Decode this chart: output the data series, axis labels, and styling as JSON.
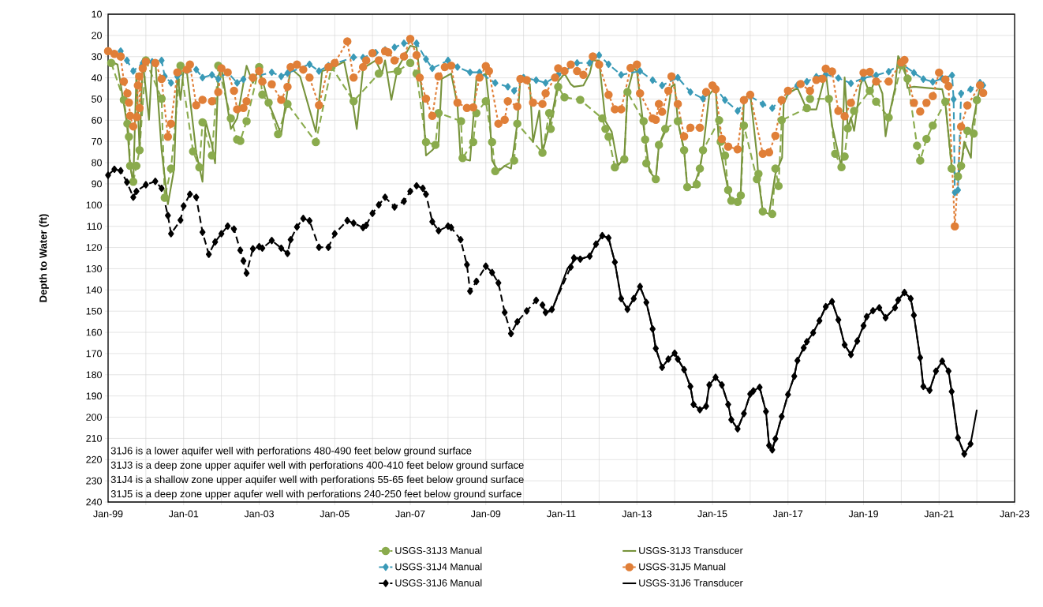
{
  "chart_data": {
    "type": "line",
    "ylabel": "Depth to Water (ft)",
    "xlim": [
      "1999-01",
      "2023-01"
    ],
    "ylim": [
      240,
      10
    ],
    "xticks": [
      {
        "value": "1999-01",
        "label": "Jan-99"
      },
      {
        "value": "2000-01",
        "label": null
      },
      {
        "value": "2001-01",
        "label": "Jan-01"
      },
      {
        "value": "2002-01",
        "label": null
      },
      {
        "value": "2003-01",
        "label": "Jan-03"
      },
      {
        "value": "2004-01",
        "label": null
      },
      {
        "value": "2005-01",
        "label": "Jan-05"
      },
      {
        "value": "2006-01",
        "label": null
      },
      {
        "value": "2007-01",
        "label": "Jan-07"
      },
      {
        "value": "2008-01",
        "label": null
      },
      {
        "value": "2009-01",
        "label": "Jan-09"
      },
      {
        "value": "2010-01",
        "label": null
      },
      {
        "value": "2011-01",
        "label": "Jan-11"
      },
      {
        "value": "2012-01",
        "label": null
      },
      {
        "value": "2013-01",
        "label": "Jan-13"
      },
      {
        "value": "2014-01",
        "label": null
      },
      {
        "value": "2015-01",
        "label": "Jan-15"
      },
      {
        "value": "2016-01",
        "label": null
      },
      {
        "value": "2017-01",
        "label": "Jan-17"
      },
      {
        "value": "2018-01",
        "label": null
      },
      {
        "value": "2019-01",
        "label": "Jan-19"
      },
      {
        "value": "2020-01",
        "label": null
      },
      {
        "value": "2021-01",
        "label": "Jan-21"
      },
      {
        "value": "2022-01",
        "label": null
      },
      {
        "value": "2023-01",
        "label": "Jan-23"
      }
    ],
    "yticks": [
      10,
      20,
      30,
      40,
      50,
      60,
      70,
      80,
      90,
      100,
      110,
      120,
      130,
      140,
      150,
      160,
      170,
      180,
      190,
      200,
      210,
      220,
      230,
      240
    ],
    "grid": true,
    "legend": "bottom",
    "annotations": [
      "31J6 is a lower aquifer well with perforations 480-490 feet below ground surface",
      "31J3 is a deep zone upper aquifer well with perforations 400-410 feet below ground surface",
      "31J4 is a shallow zone upper aquifer well with perforations 55-65 feet below ground surface",
      "31J5 is a deep zone upper aqufer well with perforations 240-250 feet below ground surface"
    ],
    "series": [
      {
        "name": "USGS-31J3 Manual",
        "color": "#8aab4d",
        "marker": "circle",
        "line_style": "dashed",
        "x": [
          "1999-02",
          "1999-06",
          "1999-07-05",
          "1999-07-20",
          "1999-08",
          "1999-09",
          "1999-10",
          "1999-11",
          "2000-01",
          "2000-06",
          "2000-07",
          "2000-09",
          "2000-12",
          "2001-04",
          "2001-06",
          "2001-07",
          "2001-10",
          "2001-12",
          "2002-04",
          "2002-06",
          "2002-07",
          "2002-09",
          "2003-01",
          "2003-02",
          "2003-04",
          "2003-07",
          "2003-10",
          "2004-07",
          "2004-12",
          "2005-07",
          "2006-03",
          "2006-09",
          "2007-01",
          "2007-03",
          "2007-06",
          "2007-09",
          "2007-10",
          "2008-05-05",
          "2008-05-20",
          "2008-09",
          "2008-10",
          "2009-01",
          "2009-03",
          "2009-04",
          "2009-10",
          "2009-11",
          "2010-07",
          "2010-09-05",
          "2010-09-20",
          "2010-12",
          "2011-02",
          "2011-07",
          "2012-02",
          "2012-03",
          "2012-04",
          "2012-06",
          "2012-09",
          "2012-10",
          "2013-03-05",
          "2013-03-20",
          "2013-04",
          "2013-07",
          "2013-08",
          "2013-10",
          "2014-02",
          "2014-04",
          "2014-05",
          "2014-08",
          "2014-09",
          "2014-10",
          "2015-03-05",
          "2015-03-20",
          "2015-05",
          "2015-06",
          "2015-07",
          "2015-09",
          "2015-10",
          "2015-11",
          "2016-03-05",
          "2016-03-20",
          "2016-05",
          "2016-08",
          "2016-09",
          "2016-10",
          "2016-11",
          "2017-07",
          "2017-08",
          "2018-02",
          "2018-04",
          "2018-06",
          "2018-07",
          "2018-08",
          "2018-10",
          "2019-03",
          "2019-05",
          "2019-09",
          "2020-01",
          "2020-03",
          "2020-06",
          "2020-07",
          "2020-09",
          "2020-11",
          "2021-03",
          "2021-05",
          "2021-07",
          "2021-08",
          "2021-10",
          "2021-12",
          "2022-01"
        ],
        "values": [
          33,
          50.4,
          61.6,
          67.8,
          81.5,
          89,
          81.5,
          74.1,
          31.8,
          49.8,
          96.5,
          82.8,
          34.3,
          74.7,
          82.2,
          61,
          76.6,
          34.3,
          59.1,
          69.1,
          69.7,
          60.4,
          34.9,
          47.9,
          51.7,
          66.6,
          52.3,
          70.3,
          34.9,
          51,
          38,
          36.8,
          33,
          38,
          70.3,
          71.6,
          56.6,
          60.4,
          77.8,
          70.3,
          56.6,
          51,
          70.3,
          84,
          79,
          61.6,
          75.3,
          56.6,
          64.1,
          44.2,
          49.2,
          50.4,
          59.1,
          64.1,
          67.8,
          82.2,
          78.4,
          46.7,
          60.4,
          69.1,
          80.3,
          87.8,
          71.6,
          64.1,
          60.4,
          74.1,
          91.5,
          90.2,
          82.8,
          74.1,
          60,
          70.1,
          76.6,
          92.9,
          97.9,
          98.5,
          95.4,
          62.5,
          87.8,
          85.3,
          103,
          104.2,
          82.8,
          91,
          60,
          54.3,
          49.9,
          49.9,
          75.8,
          82.1,
          77.1,
          63.8,
          55.6,
          46.1,
          51.2,
          58.7,
          34.1,
          40.4,
          72,
          79,
          68.8,
          62.5,
          51.2,
          82.8,
          86.5,
          81.5,
          65,
          66.3,
          50.5
        ]
      },
      {
        "name": "USGS-31J3 Transducer",
        "color": "#77933c",
        "marker": "none",
        "line_style": "solid",
        "x": [
          "1999-01",
          "1999-04",
          "1999-07",
          "1999-08",
          "1999-09",
          "1999-10",
          "1999-11",
          "1999-12",
          "2000-02",
          "2000-03",
          "2000-04",
          "2000-06",
          "2000-08",
          "2000-10",
          "2000-11",
          "2000-12",
          "2001-01",
          "2001-02",
          "2001-05",
          "2001-07",
          "2001-08",
          "2001-10",
          "2001-11",
          "2001-12",
          "2002-01",
          "2002-04",
          "2002-06",
          "2002-09",
          "2002-11",
          "2003-01",
          "2003-04",
          "2003-08",
          "2003-11",
          "2004-02",
          "2004-07",
          "2004-09",
          "2004-12",
          "2005-04",
          "2005-07",
          "2005-08",
          "2005-10",
          "2006-02",
          "2006-04",
          "2006-05",
          "2006-07",
          "2006-09",
          "2007-01",
          "2007-03",
          "2007-05",
          "2007-06",
          "2007-08",
          "2007-10",
          "2007-11",
          "2008-02",
          "2008-04",
          "2008-05",
          "2008-08",
          "2008-10",
          "2009-01",
          "2009-02",
          "2009-03",
          "2009-05",
          "2009-07",
          "2009-09",
          "2009-11",
          "2009-12",
          "2010-03",
          "2010-04",
          "2010-06",
          "2010-07",
          "2010-10",
          "2010-12",
          "2011-02",
          "2011-04",
          "2011-05",
          "2011-08",
          "2011-10",
          "2011-11",
          "2012-01",
          "2012-03",
          "2012-05",
          "2012-07",
          "2012-09",
          "2012-10",
          "2012-12",
          "2013-01",
          "2013-03",
          "2013-05",
          "2013-07",
          "2013-08",
          "2013-10",
          "2013-12",
          "2014-01",
          "2014-02",
          "2014-04",
          "2014-05",
          "2014-07",
          "2014-09",
          "2014-10",
          "2014-12",
          "2015-02",
          "2015-03",
          "2015-06",
          "2015-07",
          "2015-09",
          "2015-10",
          "2015-11",
          "2016-01",
          "2016-03-05",
          "2016-03-20",
          "2016-05",
          "2016-07",
          "2016-09",
          "2016-11-05",
          "2016-11-20",
          "2017-01",
          "2017-04",
          "2017-07",
          "2017-10",
          "2017-12",
          "2018-01",
          "2018-03",
          "2018-05",
          "2018-06",
          "2018-07",
          "2018-08",
          "2018-09",
          "2018-10",
          "2018-12",
          "2019-01",
          "2019-03",
          "2019-05",
          "2019-07",
          "2019-08",
          "2019-09",
          "2019-11",
          "2019-12",
          "2020-02",
          "2020-03",
          "2020-05",
          "2021-02",
          "2021-03",
          "2021-05",
          "2021-06",
          "2021-07",
          "2021-08",
          "2021-09",
          "2021-11-05",
          "2021-11-20",
          "2022-01",
          "2022-02"
        ],
        "values": [
          31.8,
          33.7,
          61.6,
          81.5,
          89.6,
          38,
          74.1,
          31.8,
          59.8,
          31.8,
          31.8,
          74.1,
          99.6,
          82.8,
          37.4,
          50.4,
          36.1,
          36.8,
          75.3,
          89,
          60.4,
          71.6,
          80.3,
          39.3,
          34.9,
          64.1,
          59.1,
          34.3,
          42.4,
          35.5,
          51.7,
          66.6,
          35.5,
          39.3,
          65.4,
          36.8,
          35.5,
          32.4,
          54.2,
          64.1,
          35.5,
          31.8,
          38,
          31.8,
          50.4,
          35.5,
          24.9,
          25.6,
          50.4,
          76.6,
          74.1,
          70.3,
          40.5,
          38,
          52.9,
          77.8,
          79,
          40.5,
          38,
          51.7,
          79,
          84,
          81.5,
          82.8,
          61.6,
          39.9,
          43,
          70.3,
          55.4,
          75.3,
          57.9,
          41.7,
          38,
          43,
          44.2,
          43.6,
          38,
          31.8,
          31.8,
          60.4,
          65.4,
          81.5,
          77.8,
          46.7,
          35.5,
          36.8,
          61.6,
          84,
          87.8,
          71.6,
          65.4,
          44.2,
          43,
          60.4,
          74.1,
          91.5,
          91.5,
          82.8,
          74.1,
          47.9,
          44.2,
          70.1,
          92.9,
          97.9,
          97.9,
          94.1,
          49.9,
          47.4,
          76.4,
          87.8,
          103,
          104.2,
          85.3,
          77.7,
          52.4,
          47.4,
          44.8,
          54.9,
          54.9,
          43.5,
          37.2,
          62.5,
          75.8,
          82.1,
          39.8,
          63.8,
          58.7,
          65,
          43.5,
          39.8,
          47.4,
          39.8,
          47.4,
          67.6,
          58.7,
          44.8,
          29.7,
          34.7,
          44.8,
          44.2,
          45.4,
          52.4,
          81.5,
          85.3,
          86.5,
          81.5,
          70.1,
          77.7,
          62.5,
          51.2,
          44.8
        ]
      },
      {
        "name": "USGS-31J4 Manual",
        "color": "#3a9ab7",
        "marker": "diamond",
        "line_style": "dashed",
        "x": [
          "1999-01",
          "1999-05",
          "1999-07",
          "1999-09",
          "1999-12",
          "2000-03",
          "2000-06",
          "2000-07",
          "2000-09",
          "2000-11",
          "2001-05",
          "2001-07",
          "2001-10",
          "2001-12",
          "2002-03",
          "2002-06",
          "2002-08",
          "2003-05",
          "2003-08",
          "2003-10",
          "2004-05",
          "2004-08",
          "2004-11",
          "2005-07",
          "2005-10",
          "2006-02",
          "2006-05",
          "2006-08",
          "2006-11",
          "2007-03",
          "2007-06",
          "2007-08",
          "2008-01",
          "2008-04",
          "2008-08",
          "2008-11",
          "2009-04",
          "2009-08",
          "2009-10",
          "2010-01",
          "2010-05",
          "2010-08",
          "2010-12",
          "2011-06",
          "2011-10",
          "2012-01",
          "2012-04",
          "2012-08",
          "2013-02",
          "2013-06",
          "2013-09",
          "2014-02",
          "2014-06",
          "2014-10",
          "2015-02",
          "2015-05",
          "2015-09",
          "2016-01",
          "2016-05",
          "2016-08",
          "2017-01",
          "2017-04",
          "2017-07",
          "2017-10",
          "2018-01",
          "2018-05",
          "2018-09",
          "2019-01",
          "2019-05",
          "2019-09",
          "2020-01",
          "2020-05",
          "2020-08",
          "2020-11",
          "2021-02",
          "2021-05-05",
          "2021-05-20",
          "2021-06",
          "2021-07",
          "2021-08",
          "2021-11",
          "2022-02",
          "2022-03"
        ],
        "values": [
          27.4,
          27.4,
          31.8,
          36.8,
          33,
          32.4,
          31.8,
          39.3,
          42.4,
          39.3,
          36.1,
          39.9,
          38.6,
          40.5,
          37.4,
          42.4,
          40.7,
          37.4,
          39.3,
          37.8,
          33.6,
          36.8,
          34.3,
          30.3,
          30.5,
          28.1,
          26.8,
          25.6,
          23.7,
          23.7,
          31.2,
          35.5,
          31.8,
          34.9,
          37.4,
          37.4,
          42.4,
          44.2,
          46.1,
          39.9,
          41.1,
          42.4,
          38.6,
          33,
          33,
          29.3,
          33.6,
          38.6,
          36.8,
          41.1,
          43.6,
          39.9,
          46.7,
          49.8,
          44.8,
          50.5,
          55.6,
          48.6,
          52.4,
          54.3,
          46.7,
          43.5,
          41.8,
          39.5,
          38.4,
          40.1,
          42.6,
          40.1,
          38.8,
          37.1,
          33.2,
          37.6,
          40.6,
          41.9,
          40.3,
          38.8,
          50.1,
          94.1,
          92.9,
          47.4,
          45.4,
          42.3,
          43.5
        ]
      },
      {
        "name": "USGS-31J5 Manual",
        "color": "#e07f38",
        "marker": "circle",
        "line_style": "dotted",
        "x": [
          "1999-01",
          "1999-03",
          "1999-05",
          "1999-06",
          "1999-07-05",
          "1999-07-20",
          "1999-08",
          "1999-09",
          "1999-10-04",
          "1999-10-15",
          "1999-10-28",
          "1999-11",
          "1999-12",
          "2000-01",
          "2000-04",
          "2000-06",
          "2000-08",
          "2000-09",
          "2000-11",
          "2001-02",
          "2001-03",
          "2001-05",
          "2001-07",
          "2001-10",
          "2001-12",
          "2002-01",
          "2002-03",
          "2002-05",
          "2002-06",
          "2002-08",
          "2002-09",
          "2002-11",
          "2003-01",
          "2003-02",
          "2003-05",
          "2003-08",
          "2003-10",
          "2003-11",
          "2004-01",
          "2004-03",
          "2004-05",
          "2004-08",
          "2004-11",
          "2005-01",
          "2005-05",
          "2005-07",
          "2005-10",
          "2005-11",
          "2006-01",
          "2006-03",
          "2006-05",
          "2006-06",
          "2006-08",
          "2006-11",
          "2007-01",
          "2007-03",
          "2007-04",
          "2007-06",
          "2007-08",
          "2007-10",
          "2007-12",
          "2008-02",
          "2008-04",
          "2008-07",
          "2008-09",
          "2008-11",
          "2009-01",
          "2009-02",
          "2009-05",
          "2009-07",
          "2009-08",
          "2009-11",
          "2009-12",
          "2010-02",
          "2010-04",
          "2010-07",
          "2010-08",
          "2010-11",
          "2010-12",
          "2011-02",
          "2011-04",
          "2011-06",
          "2011-08",
          "2011-11",
          "2012-01",
          "2012-04",
          "2012-06",
          "2012-08",
          "2012-11",
          "2013-01",
          "2013-02",
          "2013-06",
          "2013-07",
          "2013-08",
          "2013-09",
          "2013-11",
          "2013-12",
          "2014-02",
          "2014-04",
          "2014-06",
          "2014-09",
          "2014-11",
          "2015-01",
          "2015-02",
          "2015-04",
          "2015-06",
          "2015-09",
          "2015-11",
          "2016-01",
          "2016-05",
          "2016-07",
          "2016-09",
          "2016-11",
          "2017-01",
          "2017-05",
          "2017-08",
          "2017-10",
          "2017-12",
          "2018-01",
          "2018-03",
          "2018-05",
          "2018-07",
          "2018-09",
          "2019-01",
          "2019-03",
          "2019-05",
          "2019-09",
          "2020-01",
          "2020-02",
          "2020-05",
          "2020-07",
          "2020-09",
          "2020-11",
          "2021-01",
          "2021-03",
          "2021-04",
          "2021-06",
          "2021-08",
          "2021-10",
          "2022-02",
          "2022-03"
        ],
        "values": [
          27.4,
          28.7,
          29.9,
          41.7,
          47.3,
          51.7,
          57.9,
          62.9,
          58.5,
          43.6,
          39.3,
          54.2,
          35.5,
          32.4,
          33,
          40.5,
          67.8,
          61.6,
          37.4,
          36.1,
          33.7,
          52.9,
          50.4,
          51,
          46.7,
          35.5,
          37.4,
          46.1,
          54.8,
          54.2,
          51,
          39.9,
          36.8,
          41.7,
          43,
          50.4,
          44.2,
          34.9,
          33.7,
          36.1,
          39.9,
          52.9,
          34.9,
          33,
          22.8,
          39.9,
          34.9,
          31.8,
          28.3,
          31.8,
          27.4,
          28,
          31.8,
          29.9,
          21.6,
          29.3,
          39.9,
          49.8,
          57.9,
          39.3,
          34.9,
          34.3,
          51.7,
          54.2,
          53.9,
          39.9,
          34.5,
          36.8,
          61.6,
          59.8,
          51,
          53.5,
          40.5,
          41.1,
          51.7,
          52.3,
          47.3,
          39.9,
          35.5,
          36.8,
          33.7,
          36.8,
          38.6,
          29.9,
          33.7,
          48,
          54.8,
          54.8,
          35.3,
          33.7,
          47.3,
          59.1,
          59.8,
          52.3,
          56,
          46.1,
          39.3,
          52.3,
          67.6,
          63.5,
          63.5,
          46.7,
          43.6,
          45.4,
          68.8,
          72.4,
          73.7,
          50.5,
          48,
          75.8,
          75.1,
          67.3,
          50.5,
          46.1,
          42.9,
          46.1,
          41,
          40.4,
          35.7,
          37,
          55.6,
          58.1,
          51.8,
          37.6,
          37.2,
          41.7,
          41.7,
          32.8,
          31.6,
          51.8,
          55.9,
          51.8,
          48.6,
          37.5,
          40.8,
          43.9,
          110,
          63,
          53,
          43.5,
          47.1
        ]
      },
      {
        "name": "USGS-31J6 Manual",
        "color": "#000000",
        "marker": "diamond",
        "line_style": "dashed",
        "x": [
          "1999-01",
          "1999-03",
          "1999-05",
          "1999-07",
          "1999-09",
          "1999-10",
          "2000-01",
          "2000-04",
          "2000-06",
          "2000-08",
          "2000-09",
          "2000-12",
          "2001-01",
          "2001-03",
          "2001-05",
          "2001-07",
          "2001-09",
          "2001-11",
          "2002-01",
          "2002-03",
          "2002-05",
          "2002-07",
          "2002-08",
          "2002-09",
          "2002-11",
          "2003-01",
          "2003-02",
          "2003-05",
          "2003-08",
          "2003-10",
          "2003-11",
          "2004-01",
          "2004-03",
          "2004-05",
          "2004-08",
          "2004-11",
          "2005-01",
          "2005-05",
          "2005-07",
          "2005-10",
          "2005-11",
          "2006-01",
          "2006-03",
          "2006-05",
          "2006-08",
          "2006-11",
          "2007-01",
          "2007-03",
          "2007-05",
          "2007-06",
          "2007-08",
          "2007-10",
          "2008-01",
          "2008-02",
          "2008-05",
          "2008-07",
          "2008-08",
          "2008-10",
          "2009-01",
          "2009-03",
          "2009-05",
          "2009-07",
          "2009-09",
          "2009-11",
          "2010-02",
          "2010-05",
          "2010-07",
          "2010-08",
          "2010-10",
          "2011-04",
          "2011-05",
          "2011-07",
          "2011-10",
          "2011-12",
          "2012-02",
          "2012-04",
          "2012-06",
          "2012-08",
          "2012-10",
          "2012-12",
          "2013-02",
          "2013-04",
          "2013-06",
          "2013-07",
          "2013-09",
          "2013-11",
          "2014-01",
          "2014-02",
          "2014-04",
          "2014-06",
          "2014-07",
          "2014-09",
          "2014-11",
          "2014-12",
          "2015-02",
          "2015-04",
          "2015-06",
          "2015-07",
          "2015-09",
          "2015-11",
          "2016-01",
          "2016-02",
          "2016-04",
          "2016-06",
          "2016-07",
          "2016-08",
          "2016-09",
          "2016-11",
          "2017-01",
          "2017-03",
          "2017-04",
          "2017-06",
          "2017-07",
          "2017-09",
          "2017-11",
          "2018-01",
          "2018-03",
          "2018-05",
          "2018-07",
          "2018-09",
          "2018-11",
          "2019-01",
          "2019-02",
          "2019-04",
          "2019-06",
          "2019-08",
          "2019-11",
          "2019-12",
          "2020-02",
          "2020-04",
          "2020-05",
          "2020-07",
          "2020-08",
          "2020-10",
          "2020-12",
          "2021-02",
          "2021-04",
          "2021-05",
          "2021-07",
          "2021-09",
          "2021-11"
        ],
        "values": [
          85.9,
          83.1,
          83.8,
          89.2,
          96.3,
          93.5,
          90.4,
          88.8,
          92.1,
          104.9,
          113.5,
          107.1,
          100.4,
          94.9,
          96.3,
          112.8,
          123.2,
          117.4,
          113.5,
          109.9,
          111.3,
          121.3,
          126.3,
          132.1,
          120.6,
          119.6,
          120.3,
          116.7,
          120.3,
          122.8,
          116.3,
          110.3,
          106.3,
          107.4,
          119.9,
          119.9,
          113.5,
          107.3,
          108.5,
          110.6,
          109.5,
          103.9,
          99.9,
          96.3,
          100.9,
          98.2,
          93.5,
          90.9,
          92.1,
          94.9,
          107.8,
          112.1,
          109.9,
          110.6,
          116.3,
          128.1,
          140.6,
          136,
          128.8,
          131.8,
          136.7,
          150.6,
          160.6,
          155,
          149.9,
          144.9,
          147.1,
          150.6,
          149.2,
          129.2,
          124.9,
          125.5,
          124.1,
          118.4,
          114.4,
          115.5,
          126.9,
          144.1,
          149.1,
          144.1,
          138.4,
          145.9,
          158.4,
          167.6,
          176.5,
          172.6,
          169.8,
          172.6,
          177.6,
          185.5,
          194,
          196.5,
          194.8,
          184.8,
          181.2,
          184.8,
          194,
          201.2,
          205.5,
          198.3,
          189.1,
          187.6,
          185.9,
          197.3,
          213.3,
          215.4,
          210.2,
          199.7,
          189.3,
          180.7,
          173.3,
          167.3,
          164.4,
          160.2,
          154.5,
          147.9,
          145.5,
          154.1,
          165.9,
          170.5,
          164.1,
          156.9,
          152.6,
          149.8,
          148.4,
          153.1,
          148.4,
          144.8,
          141.2,
          144.1,
          151.9,
          171.9,
          185.5,
          187.3,
          178.3,
          173.6,
          178.3,
          187.9,
          209.7,
          217.3,
          212.6
        ]
      },
      {
        "name": "USGS-31J6 Transducer",
        "color": "#000000",
        "marker": "none",
        "line_style": "solid",
        "x": [
          "2010-08",
          "2010-10",
          "2011-03",
          "2011-06",
          "2011-07",
          "2011-10",
          "2011-12",
          "2012-02",
          "2012-04",
          "2012-06",
          "2012-08",
          "2012-10",
          "2012-12",
          "2013-02",
          "2013-04",
          "2013-06",
          "2013-07",
          "2013-09",
          "2013-11",
          "2014-01",
          "2014-02",
          "2014-04",
          "2014-06",
          "2014-07",
          "2014-09",
          "2014-11",
          "2014-12",
          "2015-02",
          "2015-04",
          "2015-06",
          "2015-07",
          "2015-09",
          "2015-11",
          "2016-01",
          "2016-02",
          "2016-04",
          "2016-06",
          "2016-07",
          "2016-08",
          "2016-09",
          "2016-11",
          "2017-01",
          "2017-03",
          "2017-04",
          "2017-06",
          "2017-07",
          "2017-09",
          "2017-11",
          "2018-01",
          "2018-03",
          "2018-05",
          "2018-07",
          "2018-09",
          "2018-11",
          "2019-01",
          "2019-02",
          "2019-04",
          "2019-06",
          "2019-08",
          "2019-11",
          "2019-12",
          "2020-02",
          "2020-04",
          "2020-05",
          "2020-07",
          "2020-08",
          "2020-10",
          "2020-12",
          "2021-02",
          "2021-04",
          "2021-05",
          "2021-07",
          "2021-09",
          "2021-11",
          "2022-01"
        ],
        "values": [
          150.6,
          149.8,
          129.8,
          124.8,
          125.5,
          124.1,
          118.4,
          114.4,
          115.5,
          126.9,
          144.1,
          149.1,
          144.1,
          138.4,
          145.9,
          158.4,
          167.6,
          176.5,
          172.6,
          169.8,
          172.6,
          177.6,
          185.5,
          194,
          196.5,
          194.8,
          184.8,
          181.2,
          184.8,
          194,
          201.2,
          205.5,
          198.3,
          189.1,
          187.6,
          185.9,
          197.3,
          213.3,
          215.4,
          210.2,
          199.7,
          189.3,
          180.7,
          173.3,
          167.3,
          164.4,
          160.2,
          154.5,
          147.9,
          145.5,
          154.1,
          165.9,
          170.5,
          164.1,
          156.9,
          152.6,
          149.8,
          148.4,
          153.1,
          148.4,
          144.8,
          141.2,
          144.1,
          151.9,
          171.9,
          185.5,
          187.3,
          178.3,
          173.6,
          178.3,
          187.9,
          209.7,
          217.3,
          212.6,
          196.5
        ]
      }
    ]
  }
}
